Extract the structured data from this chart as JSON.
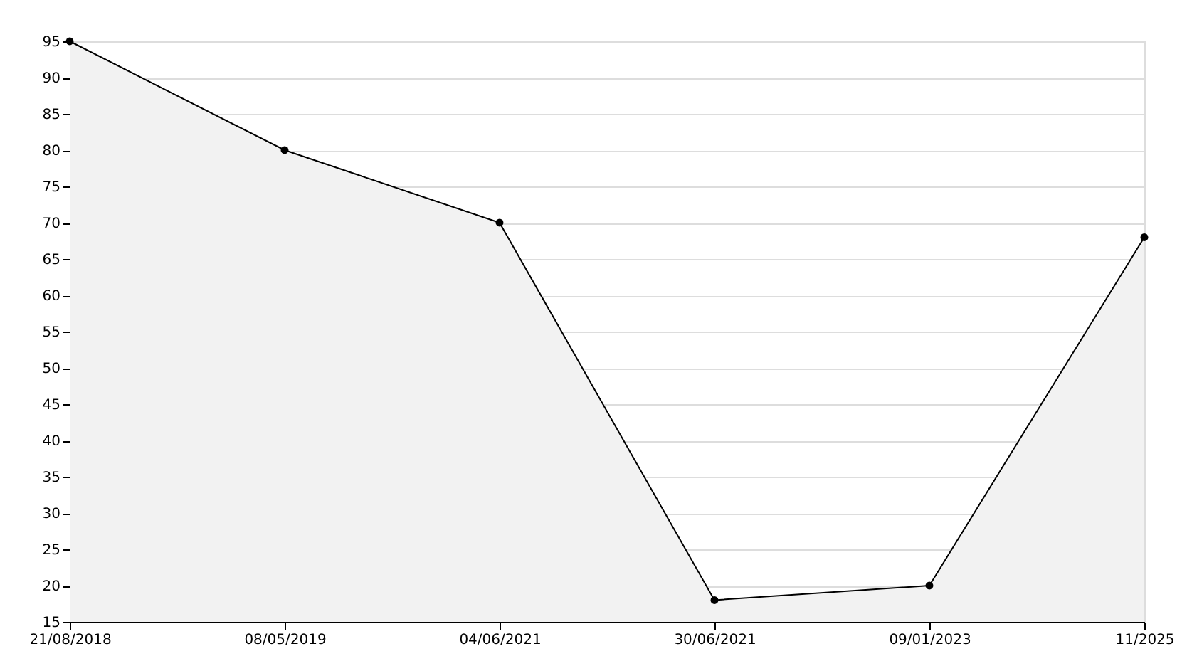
{
  "chart_data": {
    "type": "area",
    "categories": [
      "21/08/2018",
      "08/05/2019",
      "04/06/2021",
      "30/06/2021",
      "09/01/2023",
      "11/2025"
    ],
    "series": [
      {
        "color": "#000000",
        "values": [
          95,
          80,
          70,
          18,
          20,
          68
        ]
      }
    ],
    "ylim": [
      15,
      95
    ],
    "yticks": [
      15,
      20,
      25,
      30,
      35,
      40,
      45,
      50,
      55,
      60,
      65,
      70,
      75,
      80,
      85,
      90,
      95
    ],
    "grid": "y",
    "marker": "circle",
    "line_style": "solid"
  }
}
